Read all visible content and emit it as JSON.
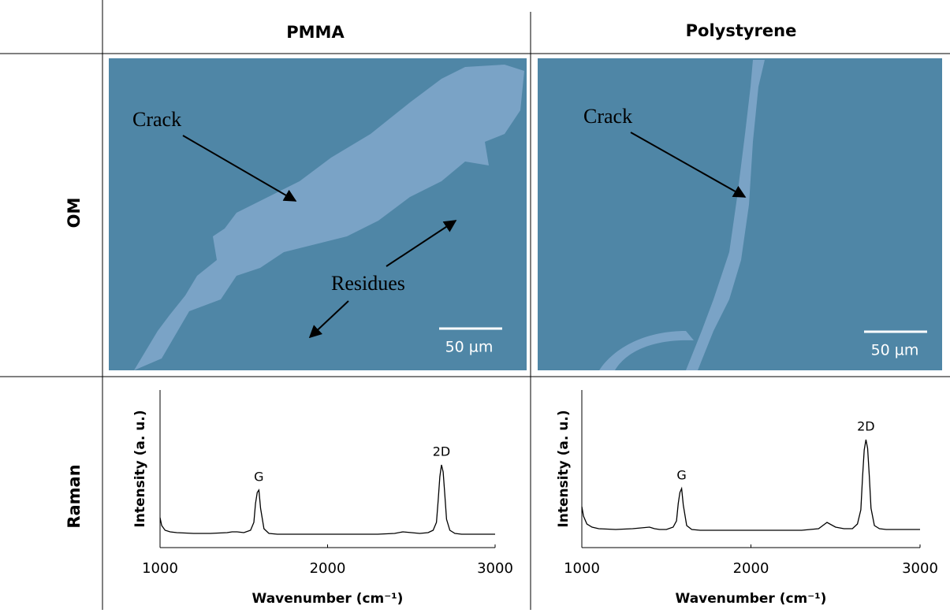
{
  "header": {
    "columns": [
      "PMMA",
      "Polystyrene"
    ],
    "rows": [
      "OM",
      "Raman"
    ]
  },
  "om": [
    {
      "annotations": [
        "Crack",
        "Residues"
      ],
      "scale_bar": "50 µm"
    },
    {
      "annotations": [
        "Crack"
      ],
      "scale_bar": "50 µm"
    }
  ],
  "chart_data": [
    {
      "type": "line",
      "x_label": "Wavenumber (cm⁻¹)",
      "y_label": "Intensity (a. u.)",
      "color": "#000000",
      "xlim": [
        1000,
        3000
      ],
      "xticks": [
        1000,
        2000,
        3000
      ],
      "ylim": [
        0,
        100
      ],
      "x": [
        1000,
        1010,
        1030,
        1060,
        1100,
        1200,
        1300,
        1400,
        1430,
        1460,
        1500,
        1540,
        1560,
        1570,
        1580,
        1590,
        1600,
        1620,
        1650,
        1700,
        1800,
        1900,
        2000,
        2100,
        2200,
        2300,
        2400,
        2450,
        2500,
        2550,
        2600,
        2630,
        2650,
        2660,
        2670,
        2680,
        2690,
        2700,
        2710,
        2730,
        2760,
        2800,
        2900,
        3000
      ],
      "values": [
        19,
        14,
        11,
        10,
        9.5,
        9,
        9,
        9.5,
        10,
        10,
        9.5,
        11,
        16,
        28,
        35,
        36.5,
        25,
        12,
        9,
        8.5,
        8.5,
        8.5,
        8.5,
        8.5,
        8.5,
        8.5,
        9,
        10,
        9.5,
        9,
        9.5,
        11,
        16,
        30,
        45,
        52.5,
        48,
        33,
        18,
        11,
        9,
        8.5,
        8.5,
        8.5
      ],
      "annotations": [
        {
          "text": "G",
          "x": 1590,
          "y": 36.5
        },
        {
          "text": "2D",
          "x": 2680,
          "y": 52.5
        }
      ]
    },
    {
      "type": "line",
      "x_label": "Wavenumber (cm⁻¹)",
      "y_label": "Intensity (a. u.)",
      "color": "#000000",
      "xlim": [
        1000,
        3000
      ],
      "xticks": [
        1000,
        2000,
        3000
      ],
      "ylim": [
        0,
        100
      ],
      "x": [
        1000,
        1010,
        1030,
        1060,
        1100,
        1200,
        1300,
        1400,
        1430,
        1460,
        1500,
        1540,
        1560,
        1570,
        1580,
        1590,
        1600,
        1620,
        1650,
        1700,
        1800,
        1900,
        2000,
        2100,
        2200,
        2300,
        2400,
        2450,
        2500,
        2550,
        2600,
        2630,
        2650,
        2660,
        2670,
        2680,
        2690,
        2700,
        2710,
        2730,
        2760,
        2800,
        2900,
        3000
      ],
      "values": [
        26,
        20,
        15,
        13,
        12,
        11.5,
        12,
        13,
        12,
        11.5,
        11.5,
        13,
        17,
        28,
        35,
        37.5,
        27,
        14,
        11.5,
        11,
        11,
        11,
        11,
        11,
        11,
        11,
        12,
        16,
        13,
        12,
        12,
        15,
        24,
        45,
        62,
        68.5,
        63,
        45,
        25,
        14,
        12,
        11.5,
        11.5,
        11.5
      ],
      "annotations": [
        {
          "text": "G",
          "x": 1590,
          "y": 37.5
        },
        {
          "text": "2D",
          "x": 2680,
          "y": 68.5
        }
      ]
    }
  ]
}
